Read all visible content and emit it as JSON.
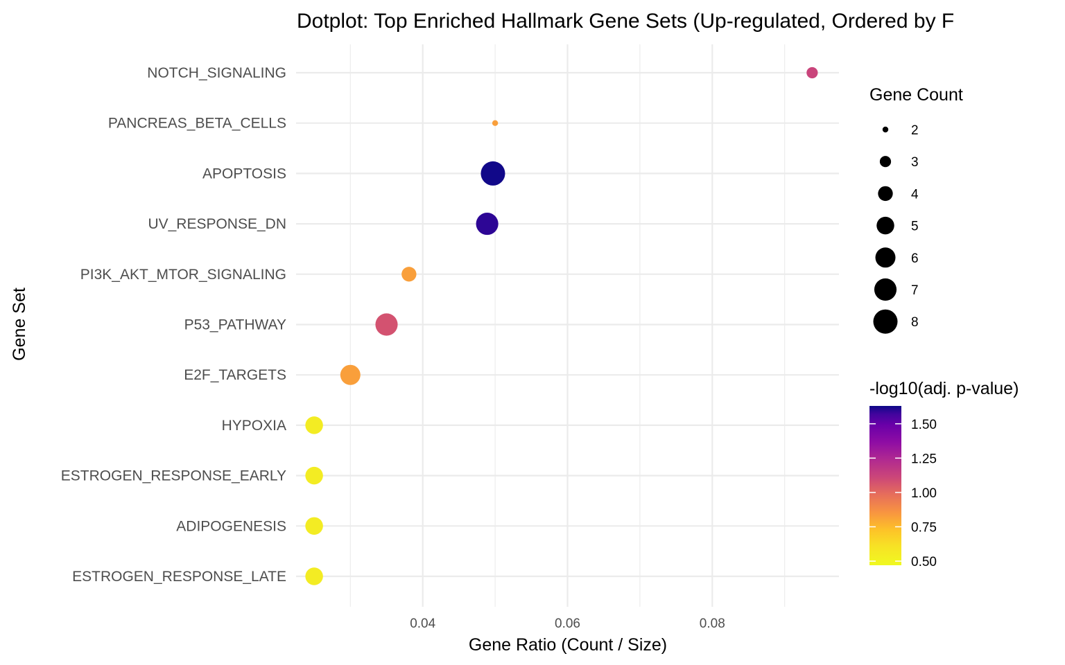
{
  "chart_data": {
    "type": "scatter",
    "title": "Dotplot: Top Enriched Hallmark Gene Sets (Up-regulated, Ordered by F",
    "xlabel": "Gene Ratio (Count / Size)",
    "ylabel": "Gene Set",
    "xlim": [
      0.0225,
      0.0975
    ],
    "x_ticks": [
      0.04,
      0.06,
      0.08
    ],
    "x_tick_labels": [
      "0.04",
      "0.06",
      "0.08"
    ],
    "grid": true,
    "points": [
      {
        "gene_set": "NOTCH_SIGNALING",
        "gene_ratio": 0.0938,
        "count": 3,
        "neg_log10_padj": 1.0
      },
      {
        "gene_set": "PANCREAS_BETA_CELLS",
        "gene_ratio": 0.05,
        "count": 2,
        "neg_log10_padj": 0.7
      },
      {
        "gene_set": "APOPTOSIS",
        "gene_ratio": 0.0497,
        "count": 8,
        "neg_log10_padj": 1.62
      },
      {
        "gene_set": "UV_RESPONSE_DN",
        "gene_ratio": 0.0489,
        "count": 7,
        "neg_log10_padj": 1.55
      },
      {
        "gene_set": "PI3K_AKT_MTOR_SIGNALING",
        "gene_ratio": 0.0381,
        "count": 4,
        "neg_log10_padj": 0.7
      },
      {
        "gene_set": "P53_PATHWAY",
        "gene_ratio": 0.035,
        "count": 7,
        "neg_log10_padj": 0.95
      },
      {
        "gene_set": "E2F_TARGETS",
        "gene_ratio": 0.03,
        "count": 6,
        "neg_log10_padj": 0.7
      },
      {
        "gene_set": "HYPOXIA",
        "gene_ratio": 0.025,
        "count": 5,
        "neg_log10_padj": 0.5
      },
      {
        "gene_set": "ESTROGEN_RESPONSE_EARLY",
        "gene_ratio": 0.025,
        "count": 5,
        "neg_log10_padj": 0.5
      },
      {
        "gene_set": "ADIPOGENESIS",
        "gene_ratio": 0.025,
        "count": 5,
        "neg_log10_padj": 0.5
      },
      {
        "gene_set": "ESTROGEN_RESPONSE_LATE",
        "gene_ratio": 0.025,
        "count": 5,
        "neg_log10_padj": 0.5
      }
    ],
    "size_legend": {
      "title": "Gene Count",
      "values": [
        2,
        3,
        4,
        5,
        6,
        7,
        8
      ],
      "labels": [
        "2",
        "3",
        "4",
        "5",
        "6",
        "7",
        "8"
      ]
    },
    "color_legend": {
      "title": "-log10(adj. p-value)",
      "range": [
        0.47,
        1.63
      ],
      "ticks": [
        0.5,
        0.75,
        1.0,
        1.25,
        1.5
      ],
      "tick_labels": [
        "0.50",
        "0.75",
        "1.00",
        "1.25",
        "1.50"
      ],
      "palette": "plasma"
    },
    "colors": {
      "high": "#0d0887",
      "mid_high": "#7e03a8",
      "mid": "#cc4778",
      "mid_low": "#f89540",
      "low": "#f0f921"
    }
  }
}
